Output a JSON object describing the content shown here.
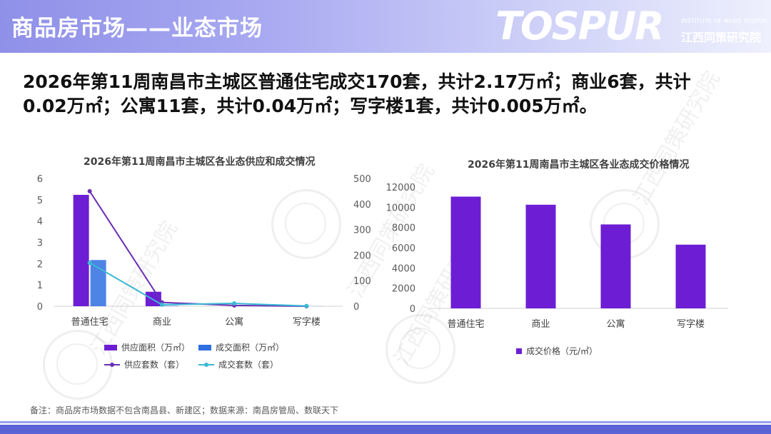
{
  "header": {
    "title": "商品房市场——业态市场",
    "logo_word": "TOSPUR",
    "logo_sub_en": "INSTITUTE OF NEWS TOSPUR",
    "logo_sub_cn": "江西同策研究院"
  },
  "summary": {
    "line1": "2026年第11周南昌市主城区普通住宅成交170套，共计2.17万㎡；商业6套，共计",
    "line2": "0.02万㎡；公寓11套，共计0.04万㎡；写字楼1套，共计0.005万㎡。"
  },
  "watermark": {
    "text": "江西同策研究院",
    "seal": "AR"
  },
  "chart_data": [
    {
      "type": "bar",
      "title": "2026年第11周南昌市主城区各业态供应和成交情况",
      "categories": [
        "普通住宅",
        "商业",
        "公寓",
        "写字楼"
      ],
      "left_axis": {
        "ylim": [
          0,
          6
        ],
        "ticks": [
          "0",
          "1",
          "2",
          "3",
          "4",
          "5",
          "6"
        ]
      },
      "right_axis": {
        "ylim": [
          0,
          500
        ],
        "ticks": [
          "0",
          "100",
          "200",
          "300",
          "400",
          "500"
        ]
      },
      "series": [
        {
          "name": "供应面积（万㎡）",
          "kind": "bar",
          "axis": "left",
          "color": "#6d1ed4",
          "values": [
            5.23,
            0.68,
            0,
            0
          ]
        },
        {
          "name": "成交面积（万㎡）",
          "kind": "bar",
          "axis": "left",
          "color": "#2f6fe0",
          "values": [
            2.17,
            0.02,
            0.04,
            0.005
          ]
        },
        {
          "name": "供应套数（套）",
          "kind": "line",
          "axis": "right",
          "color": "#6a2fb5",
          "values": [
            450,
            15,
            3,
            0
          ]
        },
        {
          "name": "成交套数（套）",
          "kind": "line",
          "axis": "right",
          "color": "#3bb8d4",
          "values": [
            170,
            6,
            11,
            1
          ]
        }
      ],
      "grid": false,
      "legend": "bottom"
    },
    {
      "type": "bar",
      "title": "2026年第11周南昌市主城区各业态成交价格情况",
      "categories": [
        "普通住宅",
        "商业",
        "公寓",
        "写字楼"
      ],
      "ylim": [
        0,
        12000
      ],
      "ticks": [
        "0",
        "2000",
        "4000",
        "6000",
        "8000",
        "10000",
        "12000"
      ],
      "series": [
        {
          "name": "成交价格（元/㎡）",
          "color": "#6d1ed4",
          "values": [
            11050,
            10250,
            8300,
            6300
          ]
        }
      ],
      "grid": false,
      "legend": "bottom"
    }
  ],
  "note": "备注：商品房市场数据不包含南昌县、新建区；数据来源：南昌房管局、数联天下"
}
